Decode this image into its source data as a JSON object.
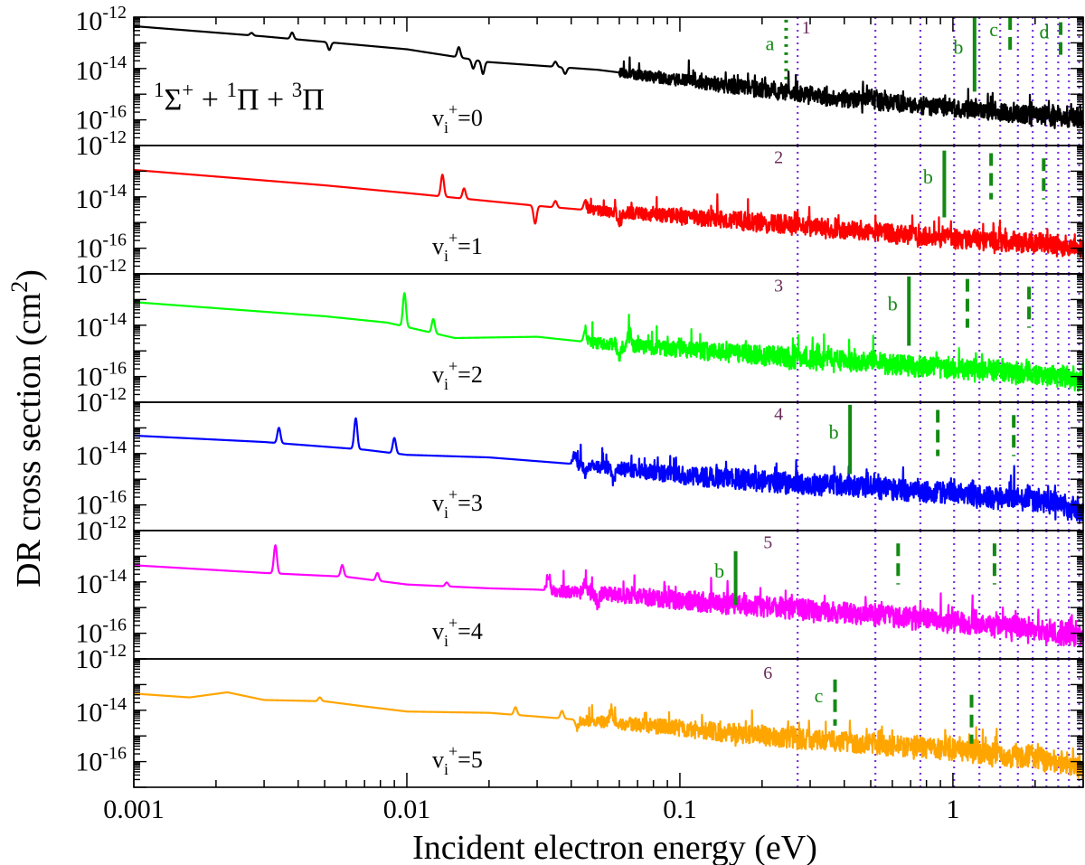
{
  "chart_data": {
    "type": "line",
    "xlabel": "Incident electron energy (eV)",
    "ylabel_main": "DR cross section (cm",
    "ylabel_sup": "2",
    "ylabel_close": ")",
    "xscale": "log",
    "xlim": [
      0.001,
      3.0
    ],
    "x_ticks": [
      {
        "value": 0.001,
        "label": "0.001"
      },
      {
        "value": 0.01,
        "label": "0.01"
      },
      {
        "value": 0.1,
        "label": "0.1"
      },
      {
        "value": 1,
        "label": "1"
      }
    ],
    "yscale": "log",
    "ylim_exp": [
      -17,
      -12
    ],
    "symmetry": {
      "t1": "1",
      "s1": "Σ",
      "p1": "+",
      "plus1": " + ",
      "t2": "1",
      "s2": "Π",
      "plus2": " + ",
      "t3": "3",
      "s3": "Π"
    },
    "y_tick_labels": {
      "top": {
        "base": "10",
        "exp": "-12"
      },
      "mid": {
        "base": "10",
        "exp": "-14"
      },
      "low": {
        "base": "10",
        "exp": "-16"
      },
      "shared": {
        "base": "10",
        "exp": "-12"
      }
    },
    "ionization_thresholds_eV": [
      0.27,
      0.52,
      0.76,
      1.01,
      1.25,
      1.49,
      1.73,
      1.96,
      2.2,
      2.43,
      2.66,
      2.9
    ],
    "panels": [
      {
        "name": "vi+=0",
        "v_base": "v",
        "v_sub": "i",
        "v_sup": "+",
        "v_eq": "=0",
        "color": "#000000",
        "smooth_log": [
          [
            0.001,
            -12.35
          ],
          [
            0.003,
            -12.75
          ],
          [
            0.01,
            -13.25
          ],
          [
            0.02,
            -13.75
          ],
          [
            0.05,
            -14.05
          ],
          [
            0.1,
            -14.45
          ],
          [
            0.3,
            -15.05
          ],
          [
            1,
            -15.55
          ],
          [
            3,
            -16.0
          ]
        ],
        "noise_start": 0.06,
        "noise_amp": 0.35,
        "peaks": [
          [
            0.0027,
            0.1
          ],
          [
            0.0038,
            0.25
          ],
          [
            0.0052,
            -0.3
          ],
          [
            0.0155,
            0.4
          ],
          [
            0.0175,
            -0.35
          ],
          [
            0.019,
            -0.5
          ],
          [
            0.035,
            0.2
          ],
          [
            0.038,
            -0.25
          ]
        ],
        "threshold_label": {
          "text": "1",
          "x": 0.29,
          "y_log": -12.35
        },
        "markers": [
          {
            "x": 0.245,
            "style": "dotted",
            "label": "a",
            "y_top": -12.1,
            "y_bot": -14.5
          },
          {
            "x": 1.2,
            "style": "solid",
            "label": "b",
            "y_top": -12.0,
            "y_bot": -14.9
          },
          {
            "x": 1.62,
            "style": "dashed",
            "label": "c",
            "y_top": -12.0,
            "y_bot": -13.5
          },
          {
            "x": 2.48,
            "style": "dashed",
            "label": "d",
            "y_top": -12.2,
            "y_bot": -13.5
          }
        ]
      },
      {
        "name": "vi+=1",
        "v_base": "v",
        "v_sub": "i",
        "v_sup": "+",
        "v_eq": "=1",
        "color": "#ff0000",
        "smooth_log": [
          [
            0.001,
            -12.95
          ],
          [
            0.005,
            -13.55
          ],
          [
            0.01,
            -13.85
          ],
          [
            0.03,
            -14.35
          ],
          [
            0.05,
            -14.55
          ],
          [
            0.1,
            -14.75
          ],
          [
            0.3,
            -15.15
          ],
          [
            1,
            -15.65
          ],
          [
            2,
            -15.85
          ],
          [
            3,
            -16.05
          ]
        ],
        "noise_start": 0.045,
        "noise_amp": 0.38,
        "peaks": [
          [
            0.0135,
            0.85
          ],
          [
            0.0162,
            0.4
          ],
          [
            0.0295,
            -0.7
          ],
          [
            0.035,
            0.25
          ],
          [
            0.045,
            0.35
          ],
          [
            0.06,
            -0.6
          ]
        ],
        "threshold_label": {
          "text": "2",
          "x": 0.23,
          "y_log": -12.4
        },
        "markers": [
          {
            "x": 0.93,
            "style": "solid",
            "label": "b",
            "y_top": -12.2,
            "y_bot": -14.8
          },
          {
            "x": 1.38,
            "style": "dashed",
            "label": "",
            "y_top": -12.3,
            "y_bot": -14.1
          },
          {
            "x": 2.15,
            "style": "dashed",
            "label": "",
            "y_top": -12.5,
            "y_bot": -14.1
          }
        ]
      },
      {
        "name": "vi+=2",
        "v_base": "v",
        "v_sub": "i",
        "v_sup": "+",
        "v_eq": "=2",
        "color": "#00ff00",
        "smooth_log": [
          [
            0.001,
            -13.1
          ],
          [
            0.005,
            -13.65
          ],
          [
            0.0085,
            -13.9
          ],
          [
            0.015,
            -14.5
          ],
          [
            0.03,
            -14.45
          ],
          [
            0.05,
            -14.7
          ],
          [
            0.1,
            -14.95
          ],
          [
            0.3,
            -15.3
          ],
          [
            1,
            -15.7
          ],
          [
            2,
            -15.9
          ],
          [
            3,
            -16.2
          ]
        ],
        "noise_start": 0.045,
        "noise_amp": 0.4,
        "peaks": [
          [
            0.0098,
            1.3
          ],
          [
            0.0125,
            0.55
          ],
          [
            0.045,
            0.45
          ],
          [
            0.06,
            -0.5
          ],
          [
            0.065,
            0.35
          ]
        ],
        "threshold_label": {
          "text": "3",
          "x": 0.23,
          "y_log": -12.4
        },
        "markers": [
          {
            "x": 0.69,
            "style": "solid",
            "label": "b",
            "y_top": -12.1,
            "y_bot": -14.8
          },
          {
            "x": 1.13,
            "style": "dashed",
            "label": "",
            "y_top": -12.2,
            "y_bot": -14.1
          },
          {
            "x": 1.9,
            "style": "dashed",
            "label": "",
            "y_top": -12.5,
            "y_bot": -14.1
          }
        ]
      },
      {
        "name": "vi+=3",
        "v_base": "v",
        "v_sub": "i",
        "v_sup": "+",
        "v_eq": "=3",
        "color": "#0000ff",
        "smooth_log": [
          [
            0.001,
            -13.3
          ],
          [
            0.003,
            -13.55
          ],
          [
            0.007,
            -13.85
          ],
          [
            0.01,
            -14.05
          ],
          [
            0.02,
            -14.15
          ],
          [
            0.04,
            -14.4
          ],
          [
            0.1,
            -14.85
          ],
          [
            0.3,
            -15.2
          ],
          [
            1,
            -15.55
          ],
          [
            2,
            -15.85
          ],
          [
            3,
            -16.35
          ]
        ],
        "noise_start": 0.04,
        "noise_amp": 0.42,
        "peaks": [
          [
            0.0034,
            0.6
          ],
          [
            0.0065,
            1.2
          ],
          [
            0.009,
            0.6
          ],
          [
            0.041,
            0.4
          ],
          [
            0.045,
            -0.3
          ],
          [
            0.057,
            -0.45
          ]
        ],
        "threshold_label": {
          "text": "4",
          "x": 0.23,
          "y_log": -12.4
        },
        "markers": [
          {
            "x": 0.42,
            "style": "solid",
            "label": "b",
            "y_top": -12.1,
            "y_bot": -14.8
          },
          {
            "x": 0.88,
            "style": "dashed",
            "label": "",
            "y_top": -12.3,
            "y_bot": -14.1
          },
          {
            "x": 1.67,
            "style": "dashed",
            "label": "",
            "y_top": -12.5,
            "y_bot": -14.1
          }
        ]
      },
      {
        "name": "vi+=4",
        "v_base": "v",
        "v_sub": "i",
        "v_sup": "+",
        "v_eq": "=4",
        "color": "#ff00ff",
        "smooth_log": [
          [
            0.001,
            -13.35
          ],
          [
            0.003,
            -13.65
          ],
          [
            0.006,
            -13.8
          ],
          [
            0.01,
            -14.1
          ],
          [
            0.02,
            -14.25
          ],
          [
            0.03,
            -14.3
          ],
          [
            0.05,
            -14.45
          ],
          [
            0.1,
            -14.7
          ],
          [
            0.3,
            -15.1
          ],
          [
            1,
            -15.55
          ],
          [
            2,
            -15.9
          ],
          [
            3,
            -16.15
          ]
        ],
        "noise_start": 0.032,
        "noise_amp": 0.42,
        "peaks": [
          [
            0.0033,
            1.1
          ],
          [
            0.0058,
            0.45
          ],
          [
            0.0078,
            0.3
          ],
          [
            0.014,
            0.15
          ],
          [
            0.033,
            0.6
          ],
          [
            0.045,
            0.4
          ],
          [
            0.05,
            -0.4
          ]
        ],
        "threshold_label": {
          "text": "5",
          "x": 0.21,
          "y_log": -12.4
        },
        "markers": [
          {
            "x": 0.16,
            "style": "solid",
            "label": "b",
            "y_top": -12.8,
            "y_bot": -14.9
          },
          {
            "x": 0.63,
            "style": "dashed",
            "label": "",
            "y_top": -12.5,
            "y_bot": -14.1
          },
          {
            "x": 1.42,
            "style": "dashed",
            "label": "",
            "y_top": -12.5,
            "y_bot": -14.1
          }
        ]
      },
      {
        "name": "vi+=5",
        "v_base": "v",
        "v_sub": "i",
        "v_sup": "+",
        "v_eq": "=5",
        "color": "#ffa500",
        "smooth_log": [
          [
            0.001,
            -13.35
          ],
          [
            0.0016,
            -13.5
          ],
          [
            0.0022,
            -13.3
          ],
          [
            0.003,
            -13.6
          ],
          [
            0.005,
            -13.65
          ],
          [
            0.007,
            -13.85
          ],
          [
            0.01,
            -14.05
          ],
          [
            0.02,
            -14.1
          ],
          [
            0.04,
            -14.35
          ],
          [
            0.1,
            -14.7
          ],
          [
            0.3,
            -15.15
          ],
          [
            1,
            -15.55
          ],
          [
            2,
            -15.9
          ],
          [
            3,
            -16.3
          ]
        ],
        "noise_start": 0.042,
        "noise_amp": 0.4,
        "peaks": [
          [
            0.0048,
            0.15
          ],
          [
            0.025,
            0.3
          ],
          [
            0.037,
            0.3
          ],
          [
            0.042,
            -0.3
          ],
          [
            0.056,
            0.5
          ]
        ],
        "threshold_label": {
          "text": "6",
          "x": 0.21,
          "y_log": -12.5
        },
        "markers": [
          {
            "x": 0.37,
            "style": "dashed",
            "label": "c",
            "y_top": -12.8,
            "y_bot": -14.6
          },
          {
            "x": 1.17,
            "style": "dashed",
            "label": "",
            "y_top": -13.4,
            "y_bot": -15.3
          }
        ]
      }
    ]
  }
}
